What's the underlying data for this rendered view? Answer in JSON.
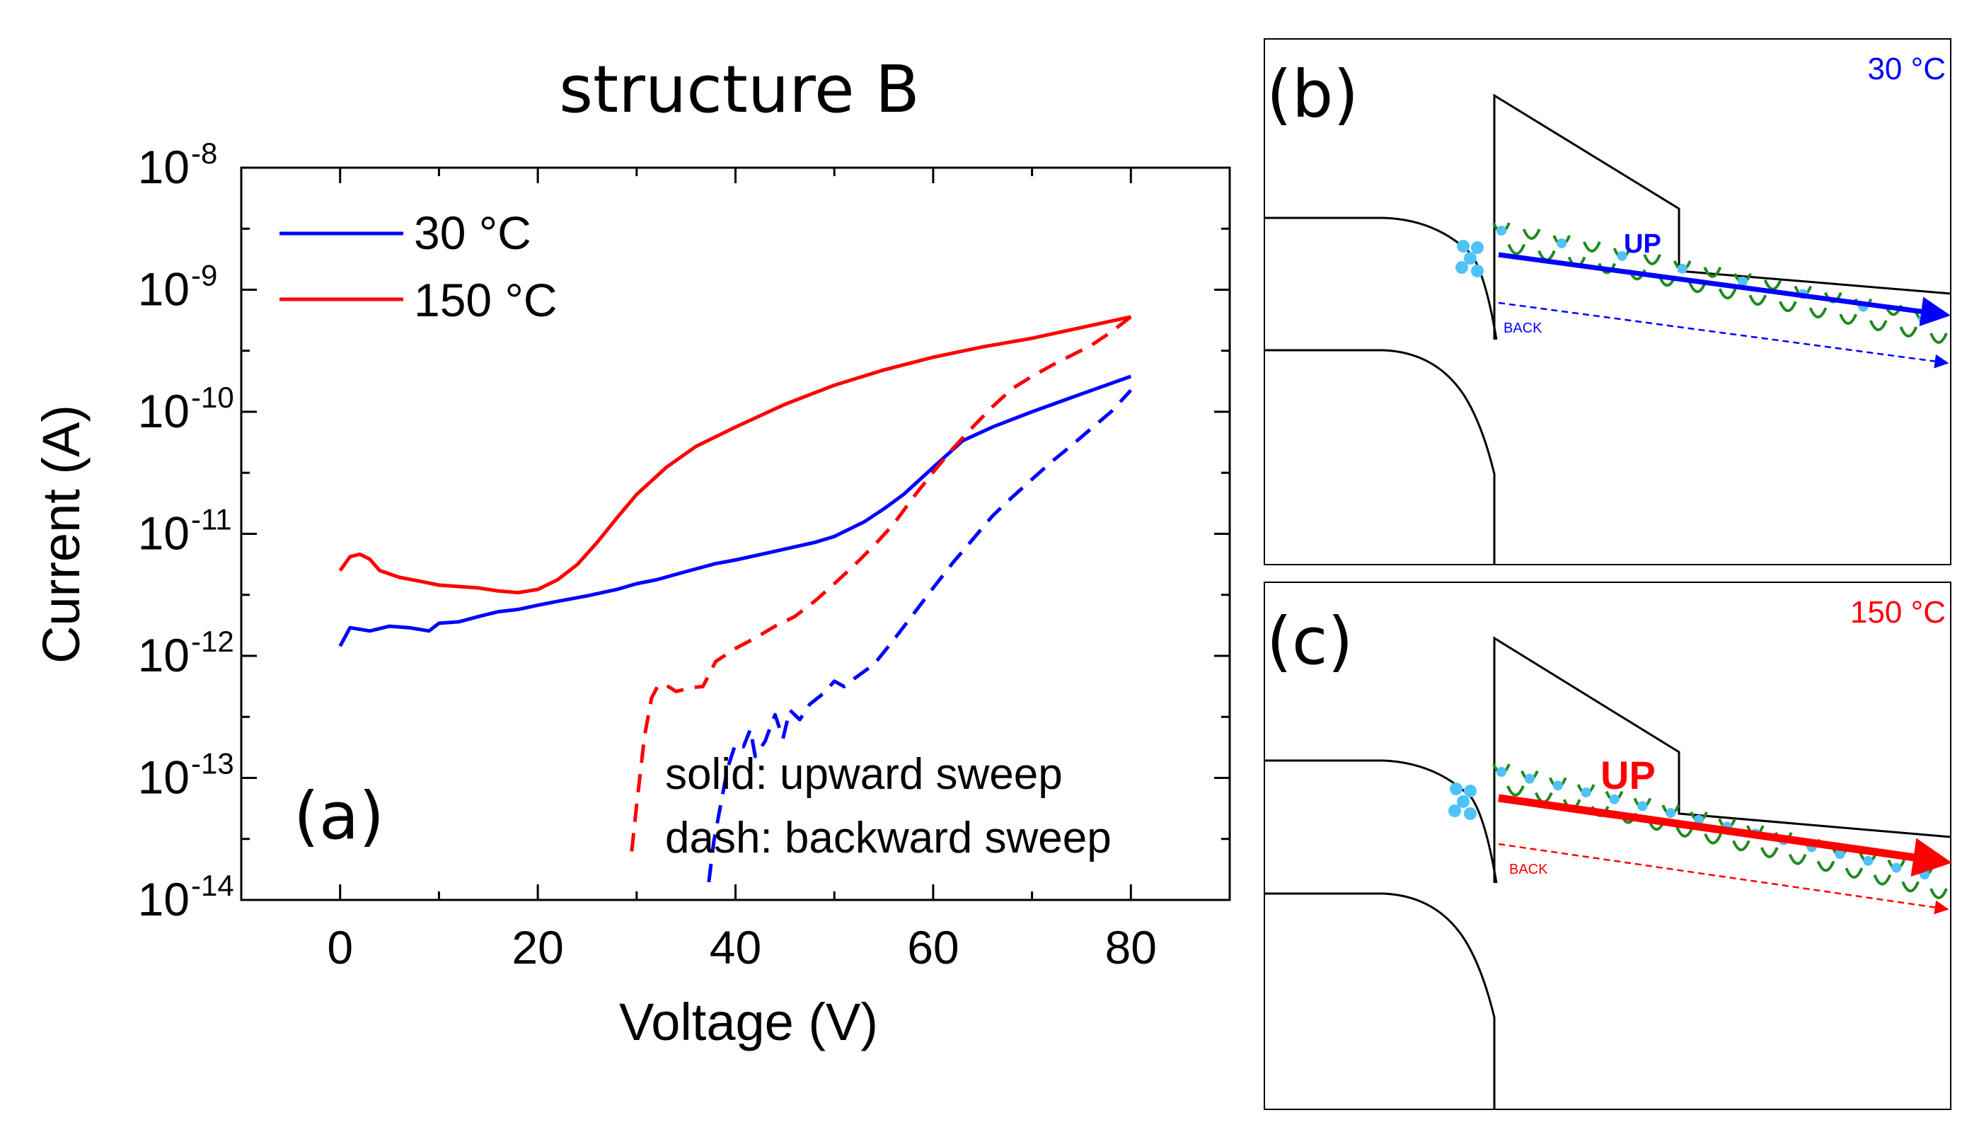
{
  "chart_data": {
    "type": "line",
    "panel_label": "(a)",
    "title": "structure B",
    "xlabel": "Voltage (V)",
    "ylabel": "Current (A)",
    "yscale": "log",
    "xlim": [
      -10,
      90
    ],
    "ylim": [
      1e-14,
      1e-08
    ],
    "xticks": [
      0,
      20,
      40,
      60,
      80
    ],
    "xtick_labels": [
      "0",
      "20",
      "40",
      "60",
      "80"
    ],
    "yticks": [
      {
        "exp": -8,
        "base": "10",
        "sup": "-8"
      },
      {
        "exp": -9,
        "base": "10",
        "sup": "-9"
      },
      {
        "exp": -10,
        "base": "10",
        "sup": "-10"
      },
      {
        "exp": -11,
        "base": "10",
        "sup": "-11"
      },
      {
        "exp": -12,
        "base": "10",
        "sup": "-12"
      },
      {
        "exp": -13,
        "base": "10",
        "sup": "-13"
      },
      {
        "exp": -14,
        "base": "10",
        "sup": "-14"
      }
    ],
    "legend": [
      {
        "label": "30 °C",
        "color": "#0000ff"
      },
      {
        "label": "150 °C",
        "color": "#ff0000"
      }
    ],
    "annotations": [
      "solid: upward sweep",
      "dash: backward sweep"
    ],
    "series": [
      {
        "name": "30 °C upward",
        "color": "#0000ff",
        "dash": false,
        "points": [
          [
            0,
            1.2e-12
          ],
          [
            1,
            1.7e-12
          ],
          [
            3,
            1.6e-12
          ],
          [
            5,
            1.75e-12
          ],
          [
            7,
            1.7e-12
          ],
          [
            9,
            1.6e-12
          ],
          [
            10,
            1.85e-12
          ],
          [
            12,
            1.9e-12
          ],
          [
            14,
            2.1e-12
          ],
          [
            16,
            2.3e-12
          ],
          [
            18,
            2.4e-12
          ],
          [
            20,
            2.6e-12
          ],
          [
            22,
            2.8e-12
          ],
          [
            25,
            3.1e-12
          ],
          [
            28,
            3.5e-12
          ],
          [
            30,
            3.9e-12
          ],
          [
            32,
            4.2e-12
          ],
          [
            35,
            4.9e-12
          ],
          [
            38,
            5.7e-12
          ],
          [
            40,
            6.1e-12
          ],
          [
            43,
            6.9e-12
          ],
          [
            45,
            7.5e-12
          ],
          [
            48,
            8.5e-12
          ],
          [
            50,
            9.5e-12
          ],
          [
            53,
            1.25e-11
          ],
          [
            55,
            1.6e-11
          ],
          [
            57,
            2.1e-11
          ],
          [
            60,
            3.5e-11
          ],
          [
            63,
            5.8e-11
          ],
          [
            66,
            7.5e-11
          ],
          [
            70,
            1e-10
          ],
          [
            75,
            1.4e-10
          ],
          [
            80,
            1.95e-10
          ]
        ]
      },
      {
        "name": "150 °C upward",
        "color": "#ff0000",
        "dash": false,
        "points": [
          [
            0,
            5e-12
          ],
          [
            1,
            6.5e-12
          ],
          [
            2,
            6.8e-12
          ],
          [
            3,
            6.2e-12
          ],
          [
            4,
            5e-12
          ],
          [
            6,
            4.4e-12
          ],
          [
            8,
            4.1e-12
          ],
          [
            10,
            3.8e-12
          ],
          [
            12,
            3.7e-12
          ],
          [
            14,
            3.6e-12
          ],
          [
            16,
            3.4e-12
          ],
          [
            18,
            3.3e-12
          ],
          [
            20,
            3.5e-12
          ],
          [
            22,
            4.2e-12
          ],
          [
            24,
            5.6e-12
          ],
          [
            26,
            8.5e-12
          ],
          [
            28,
            1.35e-11
          ],
          [
            30,
            2.1e-11
          ],
          [
            33,
            3.5e-11
          ],
          [
            36,
            5.2e-11
          ],
          [
            40,
            7.5e-11
          ],
          [
            45,
            1.15e-10
          ],
          [
            50,
            1.65e-10
          ],
          [
            55,
            2.2e-10
          ],
          [
            60,
            2.8e-10
          ],
          [
            65,
            3.4e-10
          ],
          [
            70,
            4e-10
          ],
          [
            75,
            4.9e-10
          ],
          [
            80,
            6e-10
          ]
        ]
      },
      {
        "name": "30 °C backward",
        "color": "#0000ff",
        "dash": true,
        "points": [
          [
            37.3,
            1.4e-14
          ],
          [
            37.8,
            3e-14
          ],
          [
            38.5,
            6e-14
          ],
          [
            39.2,
            1.2e-13
          ],
          [
            40,
            1.9e-13
          ],
          [
            40.8,
            1.8e-13
          ],
          [
            41.5,
            2.5e-13
          ],
          [
            42,
            1.5e-13
          ],
          [
            43,
            2e-13
          ],
          [
            44,
            3.3e-13
          ],
          [
            44.8,
            2.1e-13
          ],
          [
            45.5,
            3.6e-13
          ],
          [
            46.5,
            3e-13
          ],
          [
            47.5,
            4e-13
          ],
          [
            49,
            5e-13
          ],
          [
            50,
            6.2e-13
          ],
          [
            51,
            5.6e-13
          ],
          [
            52,
            6.5e-13
          ],
          [
            54,
            8.5e-13
          ],
          [
            56,
            1.35e-12
          ],
          [
            58,
            2.2e-12
          ],
          [
            60,
            3.6e-12
          ],
          [
            62,
            5.8e-12
          ],
          [
            64,
            9e-12
          ],
          [
            66,
            1.4e-11
          ],
          [
            68,
            2e-11
          ],
          [
            70,
            2.8e-11
          ],
          [
            72,
            3.9e-11
          ],
          [
            74,
            5.3e-11
          ],
          [
            76,
            7.3e-11
          ],
          [
            78,
            1e-10
          ],
          [
            80,
            1.5e-10
          ]
        ]
      },
      {
        "name": "150 °C backward",
        "color": "#ff0000",
        "dash": true,
        "points": [
          [
            29.5,
            2.5e-14
          ],
          [
            30,
            6e-14
          ],
          [
            30.8,
            2.2e-13
          ],
          [
            31.5,
            4.5e-13
          ],
          [
            32.2,
            5.8e-13
          ],
          [
            33.2,
            5.6e-13
          ],
          [
            34,
            5.1e-13
          ],
          [
            35.5,
            5.5e-13
          ],
          [
            36.7,
            5.6e-13
          ],
          [
            38,
            9e-13
          ],
          [
            40,
            1.15e-12
          ],
          [
            42,
            1.4e-12
          ],
          [
            44,
            1.75e-12
          ],
          [
            46,
            2.1e-12
          ],
          [
            48,
            2.8e-12
          ],
          [
            50,
            3.9e-12
          ],
          [
            52,
            5.5e-12
          ],
          [
            54,
            8e-12
          ],
          [
            56,
            1.2e-11
          ],
          [
            58,
            2e-11
          ],
          [
            60,
            3.2e-11
          ],
          [
            62,
            5e-11
          ],
          [
            64,
            7.5e-11
          ],
          [
            66,
            1.1e-10
          ],
          [
            68,
            1.55e-10
          ],
          [
            70,
            1.95e-10
          ],
          [
            72,
            2.4e-10
          ],
          [
            74,
            2.9e-10
          ],
          [
            76,
            3.5e-10
          ],
          [
            78,
            4.5e-10
          ],
          [
            80,
            6e-10
          ]
        ]
      }
    ]
  },
  "panel_b": {
    "label": "(b)",
    "temp": "30 °C",
    "temp_color": "#0000ff",
    "up": "UP",
    "back": "BACK",
    "color": "#0000ff"
  },
  "panel_c": {
    "label": "(c)",
    "temp": "150 °C",
    "temp_color": "#ff0000",
    "up": "UP",
    "back": "BACK",
    "color": "#ff0000"
  }
}
